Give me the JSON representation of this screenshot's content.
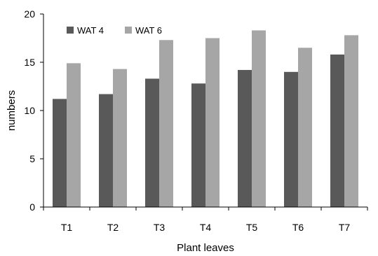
{
  "chart_data": {
    "type": "bar",
    "title": "",
    "xlabel": "Plant leaves",
    "ylabel": "numbers",
    "categories": [
      "T1",
      "T2",
      "T3",
      "T4",
      "T5",
      "T6",
      "T7"
    ],
    "series": [
      {
        "name": "WAT 4",
        "color": "#595959",
        "values": [
          11.2,
          11.7,
          13.3,
          12.8,
          14.2,
          14.0,
          15.8
        ]
      },
      {
        "name": "WAT 6",
        "color": "#a6a6a6",
        "values": [
          14.9,
          14.3,
          17.3,
          17.5,
          18.3,
          16.5,
          17.8
        ]
      }
    ],
    "ylim": [
      0,
      20
    ],
    "yticks": [
      "0",
      "5",
      "10",
      "15",
      "20"
    ],
    "grid": false,
    "legend_position": "top-left"
  }
}
